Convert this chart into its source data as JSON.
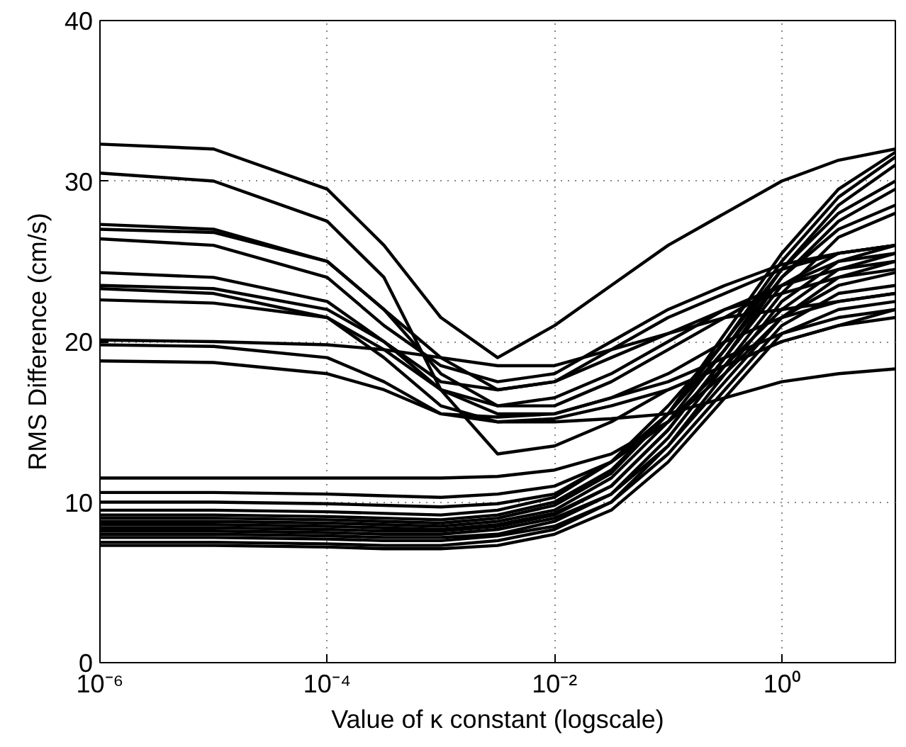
{
  "chart_data": {
    "type": "line",
    "xlabel": "Value of κ constant (logscale)",
    "ylabel": "RMS Difference (cm/s)",
    "log": "x",
    "grid": true,
    "line_style": "solid",
    "marker": "none",
    "xlim": [
      1e-06,
      10
    ],
    "xticks": [
      {
        "value": 1e-06,
        "label": "10⁻⁶"
      },
      {
        "value": 0.0001,
        "label": "10⁻⁴"
      },
      {
        "value": 0.01,
        "label": "10⁻²"
      },
      {
        "value": 1,
        "label": "10⁰"
      }
    ],
    "ylim": [
      0,
      40
    ],
    "yticks": [
      0,
      10,
      20,
      30,
      40
    ],
    "x": [
      1e-06,
      1e-05,
      0.0001,
      0.000316,
      0.001,
      0.00316,
      0.01,
      0.0316,
      0.1,
      0.316,
      1,
      3.16,
      10
    ],
    "series": [
      {
        "color": "#000000",
        "values": [
          32.3,
          32,
          29.5,
          26,
          21.5,
          19,
          21,
          23.5,
          26,
          28,
          30,
          31.3,
          32
        ]
      },
      {
        "color": "#000000",
        "values": [
          30.5,
          30,
          27.5,
          24,
          17,
          13,
          13.5,
          15,
          17,
          18.5,
          20,
          21,
          21.5
        ]
      },
      {
        "color": "#000000",
        "values": [
          27.3,
          27,
          25,
          22,
          18,
          16,
          16,
          17.5,
          19.5,
          21.5,
          23.5,
          25,
          25.5
        ]
      },
      {
        "color": "#000000",
        "values": [
          27,
          26.8,
          25,
          22,
          19,
          17,
          17.5,
          19.5,
          21.5,
          23,
          24.5,
          25.5,
          26
        ]
      },
      {
        "color": "#000000",
        "values": [
          26.4,
          26,
          24,
          21,
          18.5,
          17.5,
          18,
          20,
          22,
          23.5,
          24.8,
          25.5,
          26
        ]
      },
      {
        "color": "#000000",
        "values": [
          24.3,
          24,
          22.5,
          20,
          17,
          15.5,
          15.5,
          16.5,
          18,
          20,
          21.5,
          22.5,
          23
        ]
      },
      {
        "color": "#000000",
        "values": [
          23.5,
          23.3,
          22,
          20,
          17.5,
          17,
          17.5,
          19,
          20.5,
          22,
          23,
          24,
          24.5
        ]
      },
      {
        "color": "#000000",
        "values": [
          23.3,
          23,
          21.5,
          19,
          16,
          15,
          15.2,
          16,
          17,
          18.5,
          20,
          21,
          22
        ]
      },
      {
        "color": "#000000",
        "values": [
          22.6,
          22.4,
          21.5,
          19.5,
          17,
          16,
          16.5,
          18,
          20,
          22,
          23.5,
          24.5,
          25
        ]
      },
      {
        "color": "#000000",
        "values": [
          20.1,
          20,
          19.8,
          19.5,
          19,
          18.5,
          18.5,
          19.5,
          20.5,
          21.5,
          22,
          22.5,
          23
        ]
      },
      {
        "color": "#000000",
        "values": [
          19.8,
          19.7,
          19,
          17.5,
          15.5,
          15,
          15,
          15.2,
          15.5,
          16.5,
          17.5,
          18,
          18.3
        ]
      },
      {
        "color": "#000000",
        "values": [
          18.8,
          18.7,
          18,
          17,
          15.5,
          15.3,
          15.5,
          16.5,
          17.5,
          19,
          20.5,
          21.5,
          22
        ]
      },
      {
        "color": "#000000",
        "values": [
          11.5,
          11.5,
          11.5,
          11.5,
          11.5,
          11.6,
          12,
          13,
          15,
          18,
          21.5,
          24,
          25
        ]
      },
      {
        "color": "#000000",
        "values": [
          10.6,
          10.6,
          10.5,
          10.4,
          10.3,
          10.5,
          11,
          12.5,
          15,
          18.5,
          22,
          24.5,
          25.5
        ]
      },
      {
        "color": "#000000",
        "values": [
          10,
          10,
          9.9,
          9.8,
          9.7,
          9.9,
          10.5,
          12.5,
          15.5,
          19.5,
          24,
          27.5,
          29.5
        ]
      },
      {
        "color": "#000000",
        "values": [
          9.5,
          9.5,
          9.4,
          9.3,
          9.2,
          9.5,
          10.3,
          12.5,
          16,
          20,
          24.5,
          28.5,
          31
        ]
      },
      {
        "color": "#000000",
        "values": [
          9.2,
          9.2,
          9.1,
          9,
          8.9,
          9.2,
          10,
          12,
          15.5,
          20,
          25,
          29,
          31.5
        ]
      },
      {
        "color": "#000000",
        "values": [
          9,
          9,
          8.9,
          8.8,
          8.7,
          9,
          9.8,
          11.8,
          15.5,
          20.5,
          25.5,
          29.5,
          31.8
        ]
      },
      {
        "color": "#000000",
        "values": [
          8.8,
          8.8,
          8.7,
          8.6,
          8.5,
          8.8,
          9.5,
          11.5,
          15,
          19.5,
          24.5,
          28,
          30
        ]
      },
      {
        "color": "#000000",
        "values": [
          8.6,
          8.6,
          8.5,
          8.4,
          8.3,
          8.6,
          9.3,
          11,
          14.5,
          19,
          24,
          27,
          28.5
        ]
      },
      {
        "color": "#000000",
        "values": [
          8.4,
          8.4,
          8.3,
          8.2,
          8.2,
          8.5,
          9.2,
          11,
          14.5,
          19,
          23.5,
          25.5,
          26
        ]
      },
      {
        "color": "#000000",
        "values": [
          8.2,
          8.2,
          8.1,
          8,
          8,
          8.3,
          9,
          10.5,
          13.5,
          17.5,
          21.5,
          23.5,
          24.3
        ]
      },
      {
        "color": "#000000",
        "values": [
          8,
          8,
          7.9,
          7.8,
          7.8,
          8,
          8.8,
          10.5,
          14,
          18.5,
          23,
          26.5,
          28
        ]
      },
      {
        "color": "#000000",
        "values": [
          7.8,
          7.8,
          7.7,
          7.6,
          7.6,
          7.9,
          8.5,
          10,
          13,
          17,
          21,
          23,
          23.5
        ]
      },
      {
        "color": "#000000",
        "values": [
          7.5,
          7.5,
          7.4,
          7.3,
          7.3,
          7.6,
          8.3,
          10,
          13.5,
          18,
          22.5,
          25,
          26
        ]
      },
      {
        "color": "#000000",
        "values": [
          7.3,
          7.3,
          7.2,
          7.1,
          7.1,
          7.3,
          8,
          9.5,
          12.5,
          16.5,
          20.5,
          22,
          22.5
        ]
      }
    ]
  }
}
